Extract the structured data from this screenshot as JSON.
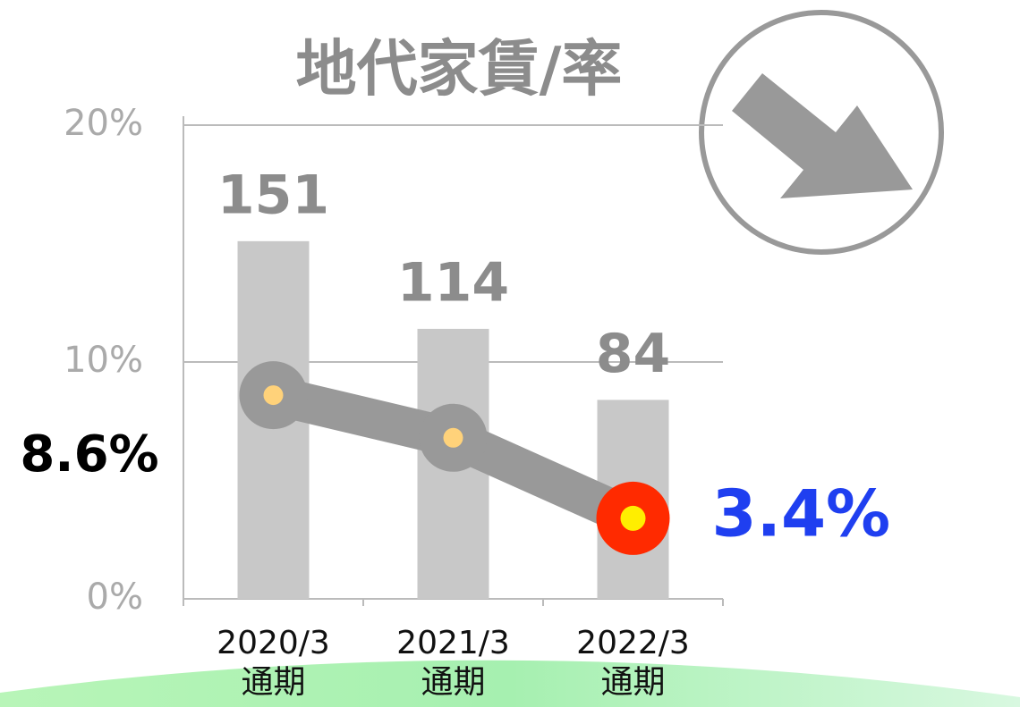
{
  "chart_data": {
    "type": "bar+line",
    "title": "地代家賃/率",
    "categories": [
      "2020/3\n通期",
      "2021/3\n通期",
      "2022/3\n通期"
    ],
    "series": [
      {
        "type": "bar",
        "axis": "y2",
        "color": "#c8c8c8",
        "values": [
          151,
          114,
          84
        ]
      },
      {
        "type": "line",
        "axis": "y",
        "color": "#999999",
        "values": [
          8.6,
          6.8,
          3.4
        ],
        "value_labels": [
          "8.6%",
          null,
          "3.4%"
        ]
      }
    ],
    "ylim": [
      0,
      20
    ],
    "yticks": [
      {
        "value": 0,
        "label": "0%"
      },
      {
        "value": 10,
        "label": "10%"
      },
      {
        "value": 20,
        "label": "20%"
      }
    ],
    "y2lim": [
      0,
      200
    ],
    "grid": true
  }
}
